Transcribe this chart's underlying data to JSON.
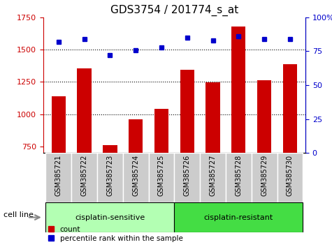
{
  "title": "GDS3754 / 201774_s_at",
  "samples": [
    "GSM385721",
    "GSM385722",
    "GSM385723",
    "GSM385724",
    "GSM385725",
    "GSM385726",
    "GSM385727",
    "GSM385728",
    "GSM385729",
    "GSM385730"
  ],
  "counts": [
    1140,
    1355,
    760,
    960,
    1040,
    1345,
    1245,
    1680,
    1265,
    1390
  ],
  "percentile_ranks": [
    82,
    84,
    72,
    76,
    78,
    85,
    83,
    86,
    84,
    84
  ],
  "ylim_left": [
    700,
    1750
  ],
  "ylim_right": [
    0,
    100
  ],
  "yticks_left": [
    750,
    1000,
    1250,
    1500,
    1750
  ],
  "yticks_right": [
    0,
    25,
    50,
    75,
    100
  ],
  "bar_color": "#cc0000",
  "dot_color": "#0000cc",
  "group1_label": "cisplatin-sensitive",
  "group2_label": "cisplatin-resistant",
  "group1_color": "#b3ffb3",
  "group2_color": "#44dd44",
  "cell_line_label": "cell line",
  "legend_count_label": "count",
  "legend_pct_label": "percentile rank within the sample",
  "bar_width": 0.55,
  "title_fontsize": 11,
  "tick_fontsize": 8,
  "label_fontsize": 8
}
